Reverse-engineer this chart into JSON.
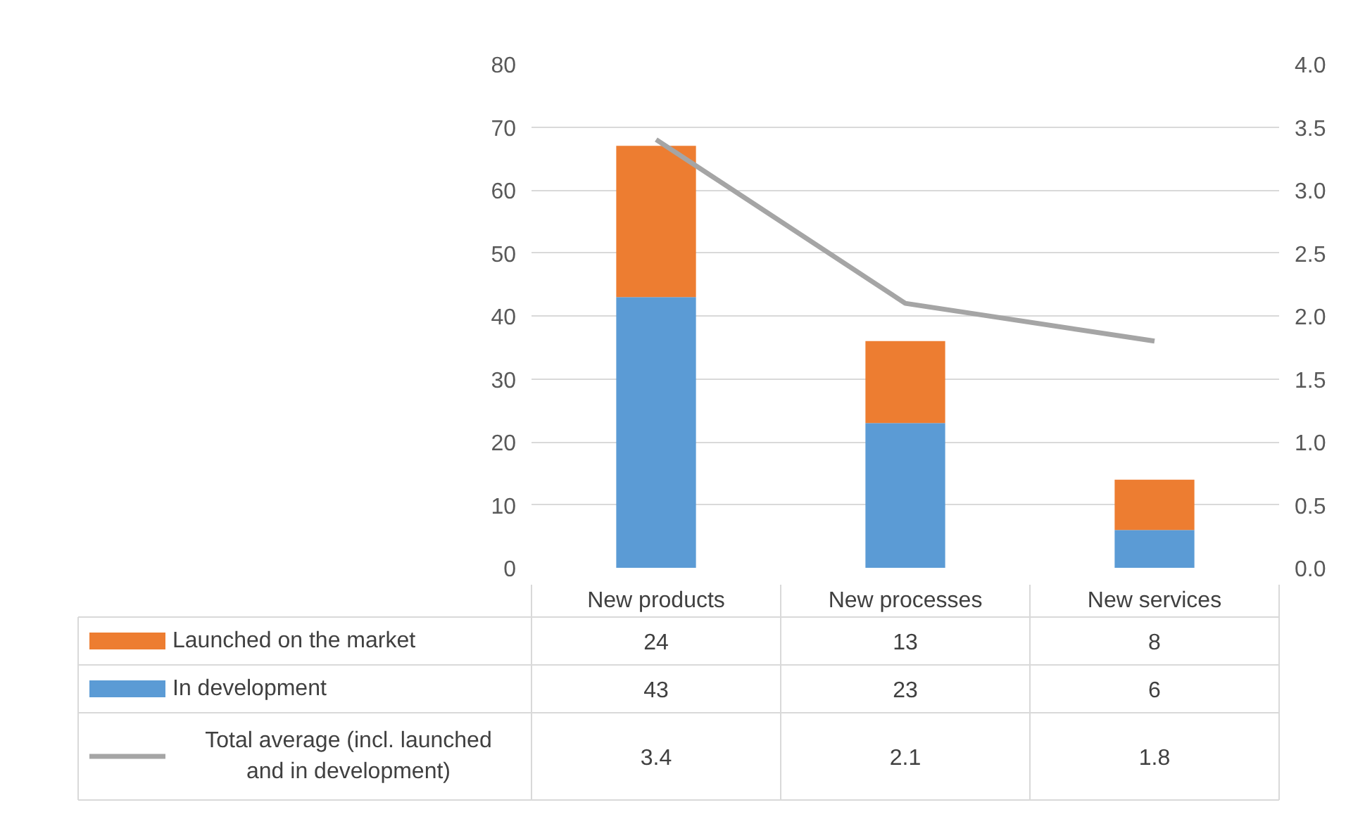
{
  "chart_data": {
    "type": "bar",
    "stacked": true,
    "categories": [
      "New products",
      "New processes",
      "New services"
    ],
    "series": [
      {
        "name": "In development",
        "color": "#5b9bd5",
        "values": [
          43,
          23,
          6
        ]
      },
      {
        "name": "Launched on the market",
        "color": "#ed7d31",
        "values": [
          24,
          13,
          8
        ]
      },
      {
        "name": "Total average (incl. launched and in development)",
        "color": "#a5a5a5",
        "type": "line",
        "axis": "y2",
        "values": [
          3.4,
          2.1,
          1.8
        ]
      }
    ],
    "ylim": [
      0,
      80
    ],
    "yticks": [
      0,
      10,
      20,
      30,
      40,
      50,
      60,
      70,
      80
    ],
    "y2lim": [
      0,
      4
    ],
    "y2ticks": [
      {
        "value": 0,
        "label": "0.0"
      },
      {
        "value": 0.5,
        "label": "0.5"
      },
      {
        "value": 1,
        "label": "1.0"
      },
      {
        "value": 1.5,
        "label": "1.5"
      },
      {
        "value": 2,
        "label": "2.0"
      },
      {
        "value": 2.5,
        "label": "2.5"
      },
      {
        "value": 3,
        "label": "3.0"
      },
      {
        "value": 3.5,
        "label": "3.5"
      },
      {
        "value": 4,
        "label": "4.0"
      }
    ],
    "grid": "y",
    "legend": "bottom",
    "data_labels": true
  }
}
